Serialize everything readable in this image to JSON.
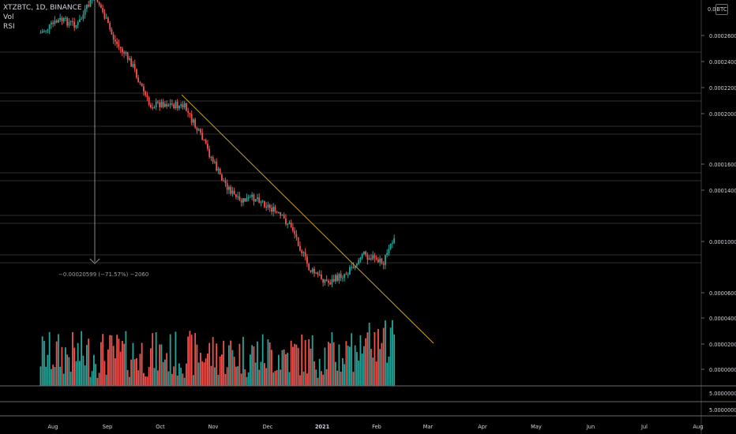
{
  "legend": {
    "symbol": "XTZBTC, 1D, BINANCE",
    "volume_label": "Vol",
    "rsi_label": "RSI"
  },
  "currency_badge": "BTC",
  "measure_label": "−0.00020599 (−71.57%) −2060",
  "colors": {
    "background": "#000000",
    "up": "#26a69a",
    "down": "#ef5350",
    "trendline": "#c9a227",
    "axis_text": "#d1d4dc",
    "hline": "#3a3a3a"
  },
  "chart_data": {
    "type": "candlestick",
    "symbol": "XTZBTC",
    "interval": "1D",
    "exchange": "BINANCE",
    "x_ticks": [
      "Aug",
      "Sep",
      "Oct",
      "Nov",
      "Dec",
      "2021",
      "Feb",
      "Mar",
      "Apr",
      "May",
      "Jun",
      "Jul",
      "Aug"
    ],
    "y_ticks": [
      "0.00026000",
      "0.00024000",
      "0.00022000",
      "0.00020000",
      "0.00016000",
      "0.00014000",
      "0.00010000",
      "0.00006000",
      "0.00004000",
      "0.00002000",
      "0.00000000"
    ],
    "horizontal_levels": [
      "0.00024670",
      "0.00021520",
      "0.00021040",
      "0.00018910",
      "0.00018490",
      "0.00015200",
      "0.00014780",
      "0.00011900",
      "0.00011500",
      "0.00008880",
      "0.00008500"
    ],
    "price_path": [
      {
        "date": "2020-07-25",
        "price": 0.000262
      },
      {
        "date": "2020-08-05",
        "price": 0.000272
      },
      {
        "date": "2020-08-15",
        "price": 0.000268
      },
      {
        "date": "2020-08-25",
        "price": 0.000292
      },
      {
        "date": "2020-09-05",
        "price": 0.000256
      },
      {
        "date": "2020-09-15",
        "price": 0.000238
      },
      {
        "date": "2020-09-25",
        "price": 0.000206
      },
      {
        "date": "2020-10-03",
        "price": 0.000208
      },
      {
        "date": "2020-10-15",
        "price": 0.000205
      },
      {
        "date": "2020-10-25",
        "price": 0.00018
      },
      {
        "date": "2020-11-05",
        "price": 0.00015
      },
      {
        "date": "2020-11-15",
        "price": 0.000132
      },
      {
        "date": "2020-11-25",
        "price": 0.000136
      },
      {
        "date": "2020-12-05",
        "price": 0.000125
      },
      {
        "date": "2020-12-15",
        "price": 0.000113
      },
      {
        "date": "2020-12-25",
        "price": 8e-05
      },
      {
        "date": "2021-01-05",
        "price": 7e-05
      },
      {
        "date": "2021-01-15",
        "price": 7.8e-05
      },
      {
        "date": "2021-01-25",
        "price": 9.2e-05
      },
      {
        "date": "2021-02-05",
        "price": 8.5e-05
      },
      {
        "date": "2021-02-12",
        "price": 0.000109
      }
    ],
    "trendline": {
      "start": {
        "date": "2020-10-05",
        "price": 0.000212
      },
      "end": {
        "date": "2021-03-10",
        "price": 2.2e-05
      }
    },
    "measure": {
      "from_date": "2020-08-25",
      "change": "−0.00020599 (−71.57%) −2060"
    },
    "volume_axis_label": "0.00000000",
    "rsi_axis_labels": [
      "5.00000000",
      "5.00000000"
    ]
  }
}
